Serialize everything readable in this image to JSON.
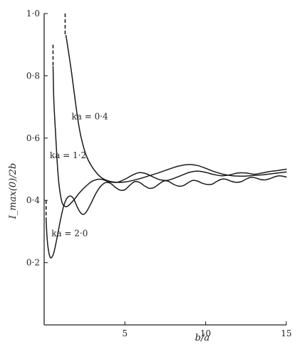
{
  "chart_data": {
    "type": "line",
    "xlabel": "b/a",
    "ylabel": "I_max(0)/2b",
    "xlim": [
      0,
      15
    ],
    "ylim": [
      0,
      1.0
    ],
    "x_ticks": [
      {
        "value": 5,
        "label": "5"
      },
      {
        "value": 10,
        "label": "10"
      },
      {
        "value": 15,
        "label": "15"
      }
    ],
    "y_ticks": [
      {
        "value": 0.2,
        "label": "0·2"
      },
      {
        "value": 0.4,
        "label": "0·4"
      },
      {
        "value": 0.6,
        "label": "0·6"
      },
      {
        "value": 0.8,
        "label": "0·8"
      },
      {
        "value": 1.0,
        "label": "1·0"
      }
    ],
    "grid": false,
    "series": [
      {
        "name": "ka = 0·4",
        "label_text": "ka = 0·4",
        "label_at": [
          1.7,
          0.66
        ],
        "stub": [
          [
            1.3,
            1.0
          ],
          [
            1.3,
            0.93
          ]
        ],
        "points": [
          [
            1.35,
            0.93
          ],
          [
            1.5,
            0.88
          ],
          [
            1.7,
            0.81
          ],
          [
            1.9,
            0.73
          ],
          [
            2.1,
            0.655
          ],
          [
            2.3,
            0.6
          ],
          [
            2.6,
            0.545
          ],
          [
            3.0,
            0.505
          ],
          [
            3.5,
            0.475
          ],
          [
            4.0,
            0.462
          ],
          [
            4.5,
            0.458
          ],
          [
            5.0,
            0.459
          ],
          [
            5.5,
            0.464
          ],
          [
            6.0,
            0.471
          ],
          [
            6.5,
            0.479
          ],
          [
            7.0,
            0.487
          ],
          [
            7.5,
            0.496
          ],
          [
            8.0,
            0.505
          ],
          [
            8.5,
            0.512
          ],
          [
            9.0,
            0.515
          ],
          [
            9.5,
            0.512
          ],
          [
            10.0,
            0.503
          ],
          [
            10.5,
            0.493
          ],
          [
            11.0,
            0.485
          ],
          [
            11.5,
            0.48
          ],
          [
            12.0,
            0.478
          ],
          [
            12.5,
            0.478
          ],
          [
            13.0,
            0.48
          ],
          [
            13.5,
            0.482
          ],
          [
            14.0,
            0.485
          ],
          [
            14.5,
            0.488
          ],
          [
            15.0,
            0.491
          ]
        ]
      },
      {
        "name": "ka = 1·2",
        "label_text": "ka = 1·2",
        "label_at": [
          0.35,
          0.535
        ],
        "stub": [
          [
            0.55,
            0.9
          ],
          [
            0.55,
            0.83
          ]
        ],
        "points": [
          [
            0.55,
            0.83
          ],
          [
            0.6,
            0.72
          ],
          [
            0.7,
            0.62
          ],
          [
            0.8,
            0.53
          ],
          [
            0.9,
            0.46
          ],
          [
            1.0,
            0.42
          ],
          [
            1.1,
            0.395
          ],
          [
            1.2,
            0.384
          ],
          [
            1.4,
            0.38
          ],
          [
            1.6,
            0.388
          ],
          [
            1.9,
            0.405
          ],
          [
            2.2,
            0.425
          ],
          [
            2.6,
            0.446
          ],
          [
            3.0,
            0.462
          ],
          [
            3.5,
            0.468
          ],
          [
            4.0,
            0.46
          ],
          [
            4.5,
            0.458
          ],
          [
            5.0,
            0.468
          ],
          [
            5.5,
            0.482
          ],
          [
            5.9,
            0.489
          ],
          [
            6.3,
            0.486
          ],
          [
            6.8,
            0.474
          ],
          [
            7.2,
            0.466
          ],
          [
            7.6,
            0.464
          ],
          [
            8.0,
            0.47
          ],
          [
            8.5,
            0.48
          ],
          [
            9.0,
            0.49
          ],
          [
            9.5,
            0.494
          ],
          [
            10.0,
            0.49
          ],
          [
            10.5,
            0.483
          ],
          [
            11.0,
            0.479
          ],
          [
            11.5,
            0.482
          ],
          [
            12.0,
            0.488
          ],
          [
            12.5,
            0.488
          ],
          [
            13.0,
            0.484
          ],
          [
            13.5,
            0.488
          ],
          [
            14.0,
            0.493
          ],
          [
            14.5,
            0.496
          ],
          [
            15.0,
            0.5
          ]
        ]
      },
      {
        "name": "ka = 2·0",
        "label_text": "ka = 2·0",
        "label_at": [
          0.45,
          0.285
        ],
        "stub": [
          [
            0.12,
            0.4
          ],
          [
            0.12,
            0.34
          ]
        ],
        "points": [
          [
            0.12,
            0.34
          ],
          [
            0.18,
            0.28
          ],
          [
            0.25,
            0.245
          ],
          [
            0.35,
            0.22
          ],
          [
            0.45,
            0.216
          ],
          [
            0.6,
            0.232
          ],
          [
            0.8,
            0.28
          ],
          [
            1.0,
            0.335
          ],
          [
            1.2,
            0.38
          ],
          [
            1.4,
            0.406
          ],
          [
            1.6,
            0.414
          ],
          [
            1.8,
            0.407
          ],
          [
            2.0,
            0.385
          ],
          [
            2.2,
            0.364
          ],
          [
            2.4,
            0.355
          ],
          [
            2.6,
            0.362
          ],
          [
            2.9,
            0.39
          ],
          [
            3.2,
            0.422
          ],
          [
            3.5,
            0.445
          ],
          [
            3.8,
            0.457
          ],
          [
            4.1,
            0.455
          ],
          [
            4.4,
            0.442
          ],
          [
            4.7,
            0.433
          ],
          [
            5.0,
            0.434
          ],
          [
            5.3,
            0.448
          ],
          [
            5.6,
            0.46
          ],
          [
            5.9,
            0.458
          ],
          [
            6.2,
            0.447
          ],
          [
            6.5,
            0.439
          ],
          [
            6.8,
            0.441
          ],
          [
            7.1,
            0.452
          ],
          [
            7.4,
            0.462
          ],
          [
            7.7,
            0.461
          ],
          [
            8.0,
            0.452
          ],
          [
            8.3,
            0.446
          ],
          [
            8.6,
            0.447
          ],
          [
            8.9,
            0.456
          ],
          [
            9.2,
            0.464
          ],
          [
            9.5,
            0.462
          ],
          [
            9.8,
            0.455
          ],
          [
            10.1,
            0.451
          ],
          [
            10.4,
            0.452
          ],
          [
            10.7,
            0.461
          ],
          [
            11.0,
            0.468
          ],
          [
            11.3,
            0.467
          ],
          [
            11.6,
            0.461
          ],
          [
            11.9,
            0.458
          ],
          [
            12.2,
            0.46
          ],
          [
            12.5,
            0.468
          ],
          [
            12.8,
            0.474
          ],
          [
            13.1,
            0.472
          ],
          [
            13.4,
            0.467
          ],
          [
            13.7,
            0.466
          ],
          [
            14.0,
            0.47
          ],
          [
            14.3,
            0.476
          ],
          [
            14.6,
            0.479
          ],
          [
            15.0,
            0.475
          ]
        ]
      }
    ]
  }
}
